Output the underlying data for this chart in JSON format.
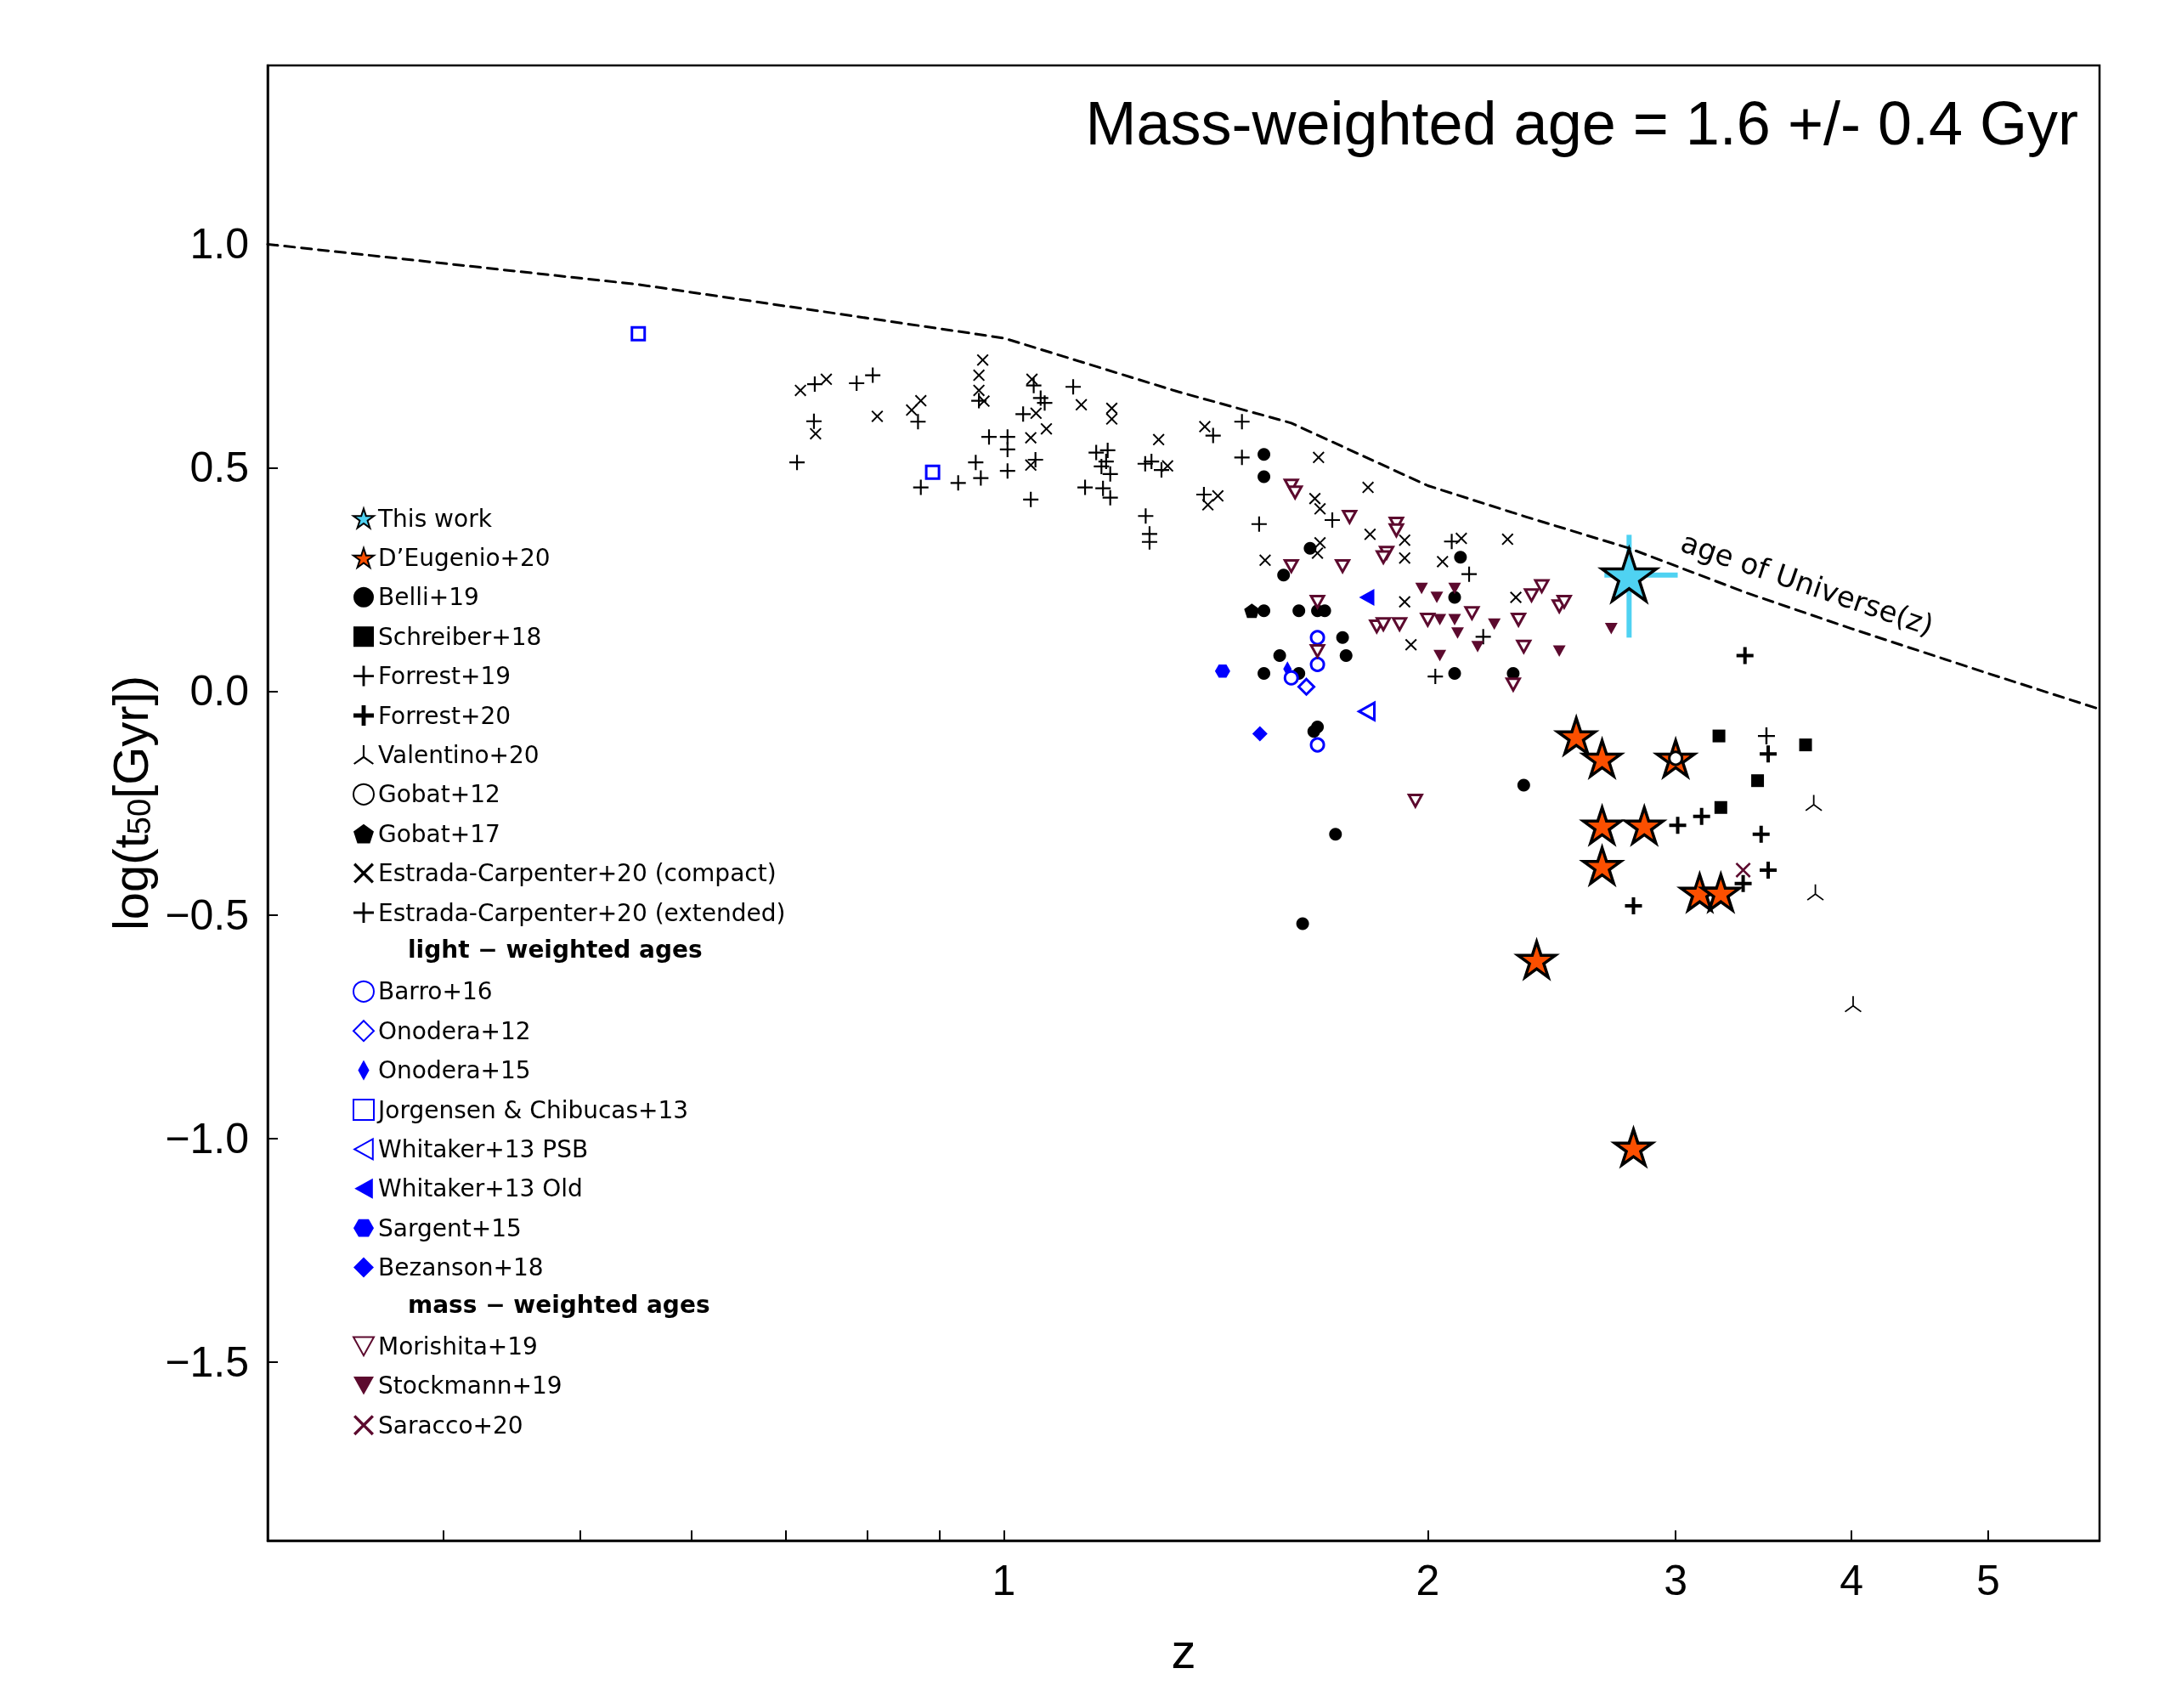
{
  "chart_data": {
    "type": "scatter",
    "xlabel": "z",
    "ylabel": "log(t$_{50}$[Gyr])",
    "log": "x",
    "xlim": [
      0.3,
      6
    ],
    "ylim": [
      -1.9,
      1.4
    ],
    "xticks": [
      {
        "value": 0.4,
        "label": null
      },
      {
        "value": 0.5,
        "label": null
      },
      {
        "value": 0.6,
        "label": null
      },
      {
        "value": 0.7,
        "label": null
      },
      {
        "value": 0.8,
        "label": null
      },
      {
        "value": 0.9,
        "label": null
      },
      1,
      2,
      3,
      4,
      5
    ],
    "yticks": [
      {
        "value": -1.5,
        "label": "−1.5"
      },
      {
        "value": -1,
        "label": "−1.0"
      },
      {
        "value": -0.5,
        "label": "−0.5"
      },
      {
        "value": 0,
        "label": "0.0"
      },
      {
        "value": 0.5,
        "label": "0.5"
      },
      {
        "value": 1,
        "label": "1.0"
      }
    ],
    "legend": "left",
    "annotations": [
      "Mass-weighted age = 1.6 +/- 0.4 Gyr",
      "light − weighted ages",
      "mass − weighted ages"
    ],
    "series": [
      {
        "name": "This work",
        "color": "#4fd2f2",
        "marker": "star",
        "x": [
          2.78
        ],
        "values": [
          0.26
        ],
        "errors": [
          [
            0.12,
            0.35
          ]
        ],
        "xerrors": [
          [
            2.67,
            3.01
          ]
        ]
      },
      {
        "name": "D’Eugenio+20",
        "color": "#fc4f00",
        "marker": "star",
        "x": [
          2.55,
          2.66,
          2.66,
          2.66,
          2.85,
          2.39,
          3.0,
          3.12,
          3.23,
          2.8
        ],
        "values": [
          -0.1,
          -0.15,
          -0.3,
          -0.39,
          -0.3,
          -0.6,
          -0.15,
          -0.45,
          -0.45,
          -1.02
        ]
      },
      {
        "name": "Belli+19",
        "color": "#000000",
        "marker": "circle",
        "x": [
          1.53,
          1.53,
          1.65,
          1.58,
          1.53,
          1.62,
          1.67,
          1.69,
          1.74,
          1.75,
          1.57,
          1.53,
          1.62,
          2.09,
          2.09,
          2.11,
          2.3,
          1.67,
          1.66,
          2.34,
          1.72,
          1.63
        ],
        "values": [
          0.53,
          0.48,
          0.32,
          0.26,
          0.18,
          0.18,
          0.18,
          0.18,
          0.12,
          0.08,
          0.08,
          0.04,
          0.04,
          0.04,
          0.21,
          0.3,
          0.04,
          -0.08,
          -0.09,
          -0.21,
          -0.32,
          -0.52
        ]
      },
      {
        "name": "Schreiber+18",
        "color": "#000000",
        "marker": "square",
        "x": [
          3.22,
          3.23,
          3.43,
          3.71
        ],
        "values": [
          -0.1,
          -0.26,
          -0.2,
          -0.12
        ]
      },
      {
        "name": "Forrest+19",
        "color": "#000000",
        "x": [
          3.48
        ],
        "values": [
          -0.1
        ]
      },
      {
        "name": "Forrest+20",
        "color": "#000000",
        "x": [
          3.36,
          3.49,
          3.01,
          3.13,
          3.45,
          3.49,
          3.35,
          2.8
        ],
        "values": [
          0.08,
          -0.14,
          -0.3,
          -0.28,
          -0.32,
          -0.4,
          -0.43,
          -0.48
        ]
      },
      {
        "name": "Valentino+20",
        "color": "#000000",
        "x": [
          3.76,
          3.77,
          4.01
        ],
        "values": [
          -0.25,
          -0.45,
          -0.7
        ]
      },
      {
        "name": "Gobat+12",
        "color": "#000000",
        "marker": "circle",
        "x": [
          3.0
        ],
        "values": [
          -0.15
        ]
      },
      {
        "name": "Gobat+17",
        "color": "#000000",
        "x": [
          1.5
        ],
        "values": [
          0.18
        ]
      },
      {
        "name": "Estrada-Carpenter+20 (compact)",
        "color": "#000000",
        "marker": "cross",
        "x": [
          0.717,
          0.748,
          0.735,
          0.813,
          0.86,
          0.873,
          0.966,
          0.96,
          0.96,
          0.968,
          1.047,
          1.054,
          1.072,
          1.135,
          1.193,
          1.193,
          1.045,
          1.045,
          1.288,
          1.307,
          1.389,
          1.396,
          1.419,
          1.673,
          1.663,
          1.677,
          1.814,
          1.82,
          1.533,
          1.677,
          1.67,
          1.926,
          1.926,
          2.049,
          1.926,
          1.946,
          2.279,
          2.31,
          2.113
        ],
        "values": [
          0.673,
          0.698,
          0.576,
          0.615,
          0.629,
          0.65,
          0.741,
          0.707,
          0.673,
          0.649,
          0.698,
          0.622,
          0.587,
          0.641,
          0.633,
          0.609,
          0.567,
          0.506,
          0.563,
          0.504,
          0.592,
          0.417,
          0.437,
          0.523,
          0.431,
          0.408,
          0.456,
          0.351,
          0.293,
          0.332,
          0.309,
          0.338,
          0.298,
          0.29,
          0.2,
          0.104,
          0.34,
          0.21,
          0.342
        ]
      },
      {
        "name": "Estrada-Carpenter+20 (extended)",
        "color": "#000000",
        "x": [
          0.713,
          0.734,
          0.733,
          0.786,
          0.807,
          0.869,
          0.873,
          0.928,
          0.955,
          0.963,
          0.96,
          0.976,
          1.006,
          1.006,
          1.006,
          1.032,
          1.05,
          1.062,
          1.069,
          1.045,
          1.053,
          1.12,
          1.142,
          1.163,
          1.185,
          1.182,
          1.173,
          1.19,
          1.176,
          1.19,
          1.26,
          1.273,
          1.294,
          1.261,
          1.269,
          1.269,
          1.387,
          1.408,
          1.476,
          1.476,
          1.518,
          1.711,
          2.08,
          2.14,
          2.19,
          2.025
        ],
        "values": [
          0.512,
          0.687,
          0.604,
          0.689,
          0.707,
          0.603,
          0.456,
          0.466,
          0.512,
          0.477,
          0.65,
          0.569,
          0.569,
          0.541,
          0.493,
          0.62,
          0.684,
          0.656,
          0.645,
          0.429,
          0.518,
          0.681,
          0.456,
          0.534,
          0.539,
          0.514,
          0.503,
          0.486,
          0.454,
          0.433,
          0.509,
          0.514,
          0.495,
          0.392,
          0.352,
          0.334,
          0.44,
          0.572,
          0.603,
          0.523,
          0.374,
          0.383,
          0.335,
          0.262,
          0.122,
          0.033
        ]
      },
      {
        "name": "Barro+16",
        "color": "#0000ff",
        "marker": "circle",
        "x": [
          1.67,
          1.67,
          1.6,
          1.67
        ],
        "values": [
          0.12,
          0.06,
          0.03,
          -0.12
        ]
      },
      {
        "name": "Onodera+12",
        "color": "#0000ff",
        "marker": "diamond",
        "x": [
          1.64
        ],
        "values": [
          0.01
        ]
      },
      {
        "name": "Onodera+15",
        "color": "#0000ff",
        "x": [
          1.59
        ],
        "values": [
          0.05
        ]
      },
      {
        "name": "Jorgensen & Chibucas+13",
        "color": "#0000ff",
        "marker": "square",
        "x": [
          0.55,
          0.89
        ],
        "values": [
          0.8,
          0.49
        ]
      },
      {
        "name": "Whitaker+13 PSB",
        "color": "#0000ff",
        "x": [
          1.81
        ],
        "values": [
          -0.045
        ]
      },
      {
        "name": "Whitaker+13 Old",
        "color": "#0000ff",
        "x": [
          1.81
        ],
        "values": [
          0.21
        ]
      },
      {
        "name": "Sargent+15",
        "color": "#0000ff",
        "x": [
          1.43
        ],
        "values": [
          0.045
        ]
      },
      {
        "name": "Bezanson+18",
        "color": "#0000ff",
        "marker": "diamond",
        "x": [
          1.52
        ],
        "values": [
          -0.095
        ]
      },
      {
        "name": "Morishita+19",
        "color": "#5c0a2e",
        "x": [
          1.6,
          1.61,
          1.76,
          1.9,
          1.9,
          1.87,
          1.86,
          1.6,
          1.74,
          1.67,
          1.67,
          1.84,
          1.86,
          1.91,
          2.0,
          2.15,
          2.32,
          2.34,
          2.3,
          2.37,
          2.41,
          2.48,
          2.5,
          1.96
        ],
        "values": [
          0.46,
          0.445,
          0.39,
          0.375,
          0.36,
          0.31,
          0.3,
          0.28,
          0.28,
          0.2,
          0.09,
          0.145,
          0.15,
          0.15,
          0.16,
          0.175,
          0.16,
          0.1,
          0.015,
          0.215,
          0.235,
          0.19,
          0.2,
          -0.245
        ]
      },
      {
        "name": "Stockmann+19",
        "color": "#5c0a2e",
        "x": [
          2.7,
          2.48,
          1.98,
          2.03,
          2.04,
          2.09,
          2.09,
          2.1,
          2.17,
          2.23,
          2.04
        ],
        "values": [
          0.14,
          0.09,
          0.23,
          0.21,
          0.16,
          0.23,
          0.16,
          0.13,
          0.1,
          0.15,
          0.08
        ]
      },
      {
        "name": "Saracco+20",
        "color": "#5c0a2e",
        "marker": "cross",
        "x": [
          3.35
        ],
        "values": [
          -0.4
        ]
      },
      {
        "name": "age of Universe(z)",
        "type": "line",
        "color": "#000000",
        "marker": "none",
        "line_style": "dashed",
        "x": [
          0.3,
          0.55,
          1,
          1.33,
          1.6,
          2,
          2.35,
          2.78,
          3.37,
          4,
          5,
          6
        ],
        "values": [
          1.0,
          0.91,
          0.79,
          0.67,
          0.6,
          0.46,
          0.39,
          0.32,
          0.22,
          0.14,
          0.04,
          -0.04
        ]
      }
    ]
  }
}
